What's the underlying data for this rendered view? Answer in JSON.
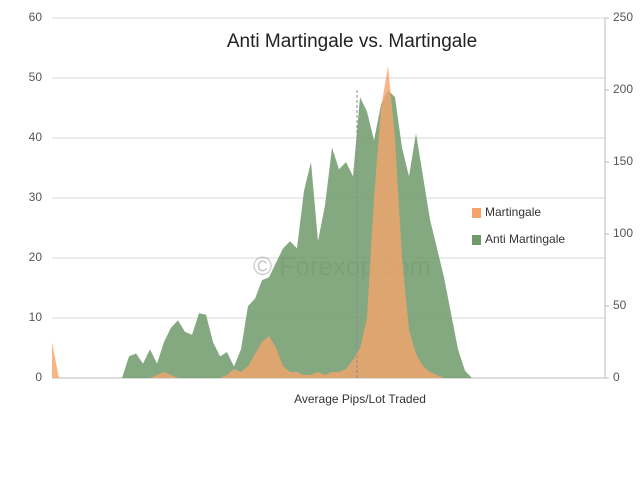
{
  "chart_data": {
    "type": "area",
    "title": "Anti Martingale vs. Martingale",
    "x_label": "Average Pips/Lot Traded",
    "watermark": "© Forexop.com",
    "categories": [
      null,
      null,
      null,
      null,
      null,
      null,
      null,
      null,
      null,
      null,
      null,
      null,
      null,
      null,
      null,
      null,
      null,
      null,
      null,
      null,
      null,
      null,
      null,
      null,
      null,
      null,
      null,
      null,
      null,
      null,
      null,
      null,
      null,
      null,
      null,
      null,
      null,
      null,
      null,
      null,
      null,
      null,
      null,
      null,
      null,
      null,
      null,
      null,
      null,
      null,
      null,
      null,
      null,
      null,
      null,
      null,
      null,
      null,
      null,
      null,
      null,
      null,
      null,
      null,
      null,
      null,
      null,
      null,
      null,
      null,
      null,
      null,
      null,
      null,
      null,
      null,
      null,
      null,
      null,
      null
    ],
    "series": [
      {
        "name": "Anti Martingale",
        "color": "#6f9a6a",
        "axis": "y2",
        "values": [
          0,
          0,
          0,
          0,
          0,
          0,
          0,
          0,
          0,
          0,
          0,
          15,
          17,
          10,
          20,
          10,
          25,
          35,
          40,
          32,
          30,
          45,
          44,
          25,
          15,
          18,
          8,
          20,
          50,
          55,
          68,
          70,
          80,
          90,
          95,
          90,
          130,
          150,
          95,
          120,
          160,
          145,
          150,
          140,
          195,
          185,
          165,
          190,
          200,
          195,
          160,
          140,
          170,
          140,
          110,
          90,
          70,
          45,
          20,
          5,
          0,
          0,
          0,
          0,
          0,
          0,
          0,
          0,
          0,
          0,
          0,
          0,
          0,
          0,
          0,
          0,
          0,
          0,
          0,
          0
        ]
      },
      {
        "name": "Martingale",
        "color": "#f4a46a",
        "values": [
          6,
          0,
          0,
          0,
          0,
          0,
          0,
          0,
          0,
          0,
          0,
          0,
          0,
          0,
          0,
          0.5,
          1,
          0.5,
          0,
          0,
          0,
          0,
          0,
          0,
          0,
          0.5,
          1.5,
          1,
          2,
          4,
          6,
          7,
          5,
          2,
          1,
          1,
          0.5,
          0.5,
          1,
          0.5,
          1,
          1,
          1.5,
          3,
          5,
          10,
          30,
          45,
          52,
          40,
          20,
          8,
          4,
          2,
          1,
          0.5,
          0,
          0,
          0,
          0,
          0,
          0,
          0,
          0,
          0,
          0,
          0,
          0,
          0,
          0,
          0,
          0,
          0,
          0,
          0,
          0,
          0,
          0,
          0,
          0
        ]
      }
    ],
    "ylim": [
      0,
      60
    ],
    "yticks": [
      0,
      10,
      20,
      30,
      40,
      50,
      60
    ],
    "y2lim": [
      0,
      250
    ],
    "y2ticks": [
      0,
      50,
      100,
      150,
      200,
      250
    ],
    "grid": true,
    "legend": "right"
  }
}
